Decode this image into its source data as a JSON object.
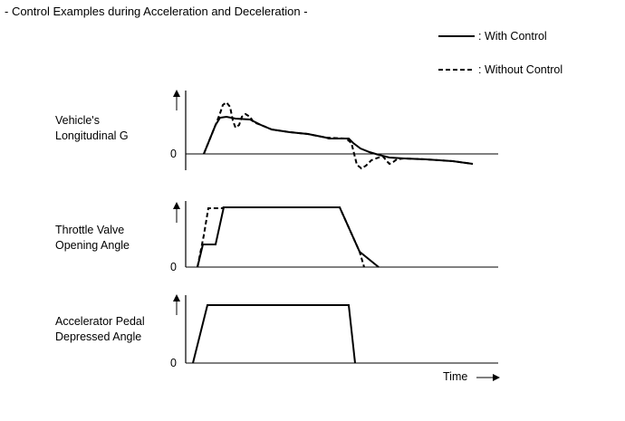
{
  "title": "- Control Examples during Acceleration and Deceleration -",
  "legend": {
    "with_control": ": With Control",
    "without_control": ": Without Control"
  },
  "rows": [
    {
      "label_line1": "Vehicle's",
      "label_line2": "Longitudinal G",
      "zero": "0"
    },
    {
      "label_line1": "Throttle Valve",
      "label_line2": "Opening Angle",
      "zero": "0"
    },
    {
      "label_line1": "Accelerator Pedal",
      "label_line2": "Depressed Angle",
      "zero": "0"
    }
  ],
  "time_label": "Time",
  "colors": {
    "line": "#000000",
    "background": "#ffffff"
  }
}
